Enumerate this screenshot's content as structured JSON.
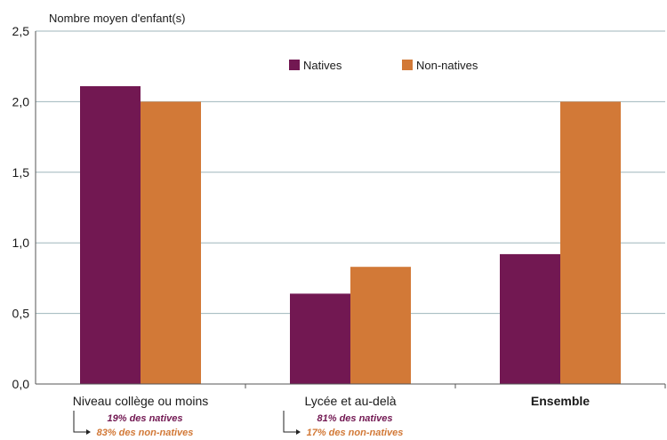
{
  "colors": {
    "natives": "#721852",
    "non_natives": "#D27937",
    "grid": "#9fb6bb",
    "axis": "#555555"
  },
  "chart_data": {
    "type": "bar",
    "ylabel": "Nombre moyen d'enfant(s)",
    "ylim": [
      0,
      2.5
    ],
    "yticks": [
      "0,0",
      "0,5",
      "1,0",
      "1,5",
      "2,0",
      "2,5"
    ],
    "grid": true,
    "legend_position": "top-right",
    "categories": [
      "Niveau collège ou moins",
      "Lycée et au-delà",
      "Ensemble"
    ],
    "series": [
      {
        "name": "Natives",
        "values": [
          2.11,
          0.64,
          0.92
        ]
      },
      {
        "name": "Non-natives",
        "values": [
          2.0,
          0.83,
          2.0
        ]
      }
    ],
    "annotations": [
      {
        "natives": "19% des natives",
        "non_natives": "83% des non-natives"
      },
      {
        "natives": "81% des natives",
        "non_natives": "17% des non-natives"
      }
    ]
  }
}
